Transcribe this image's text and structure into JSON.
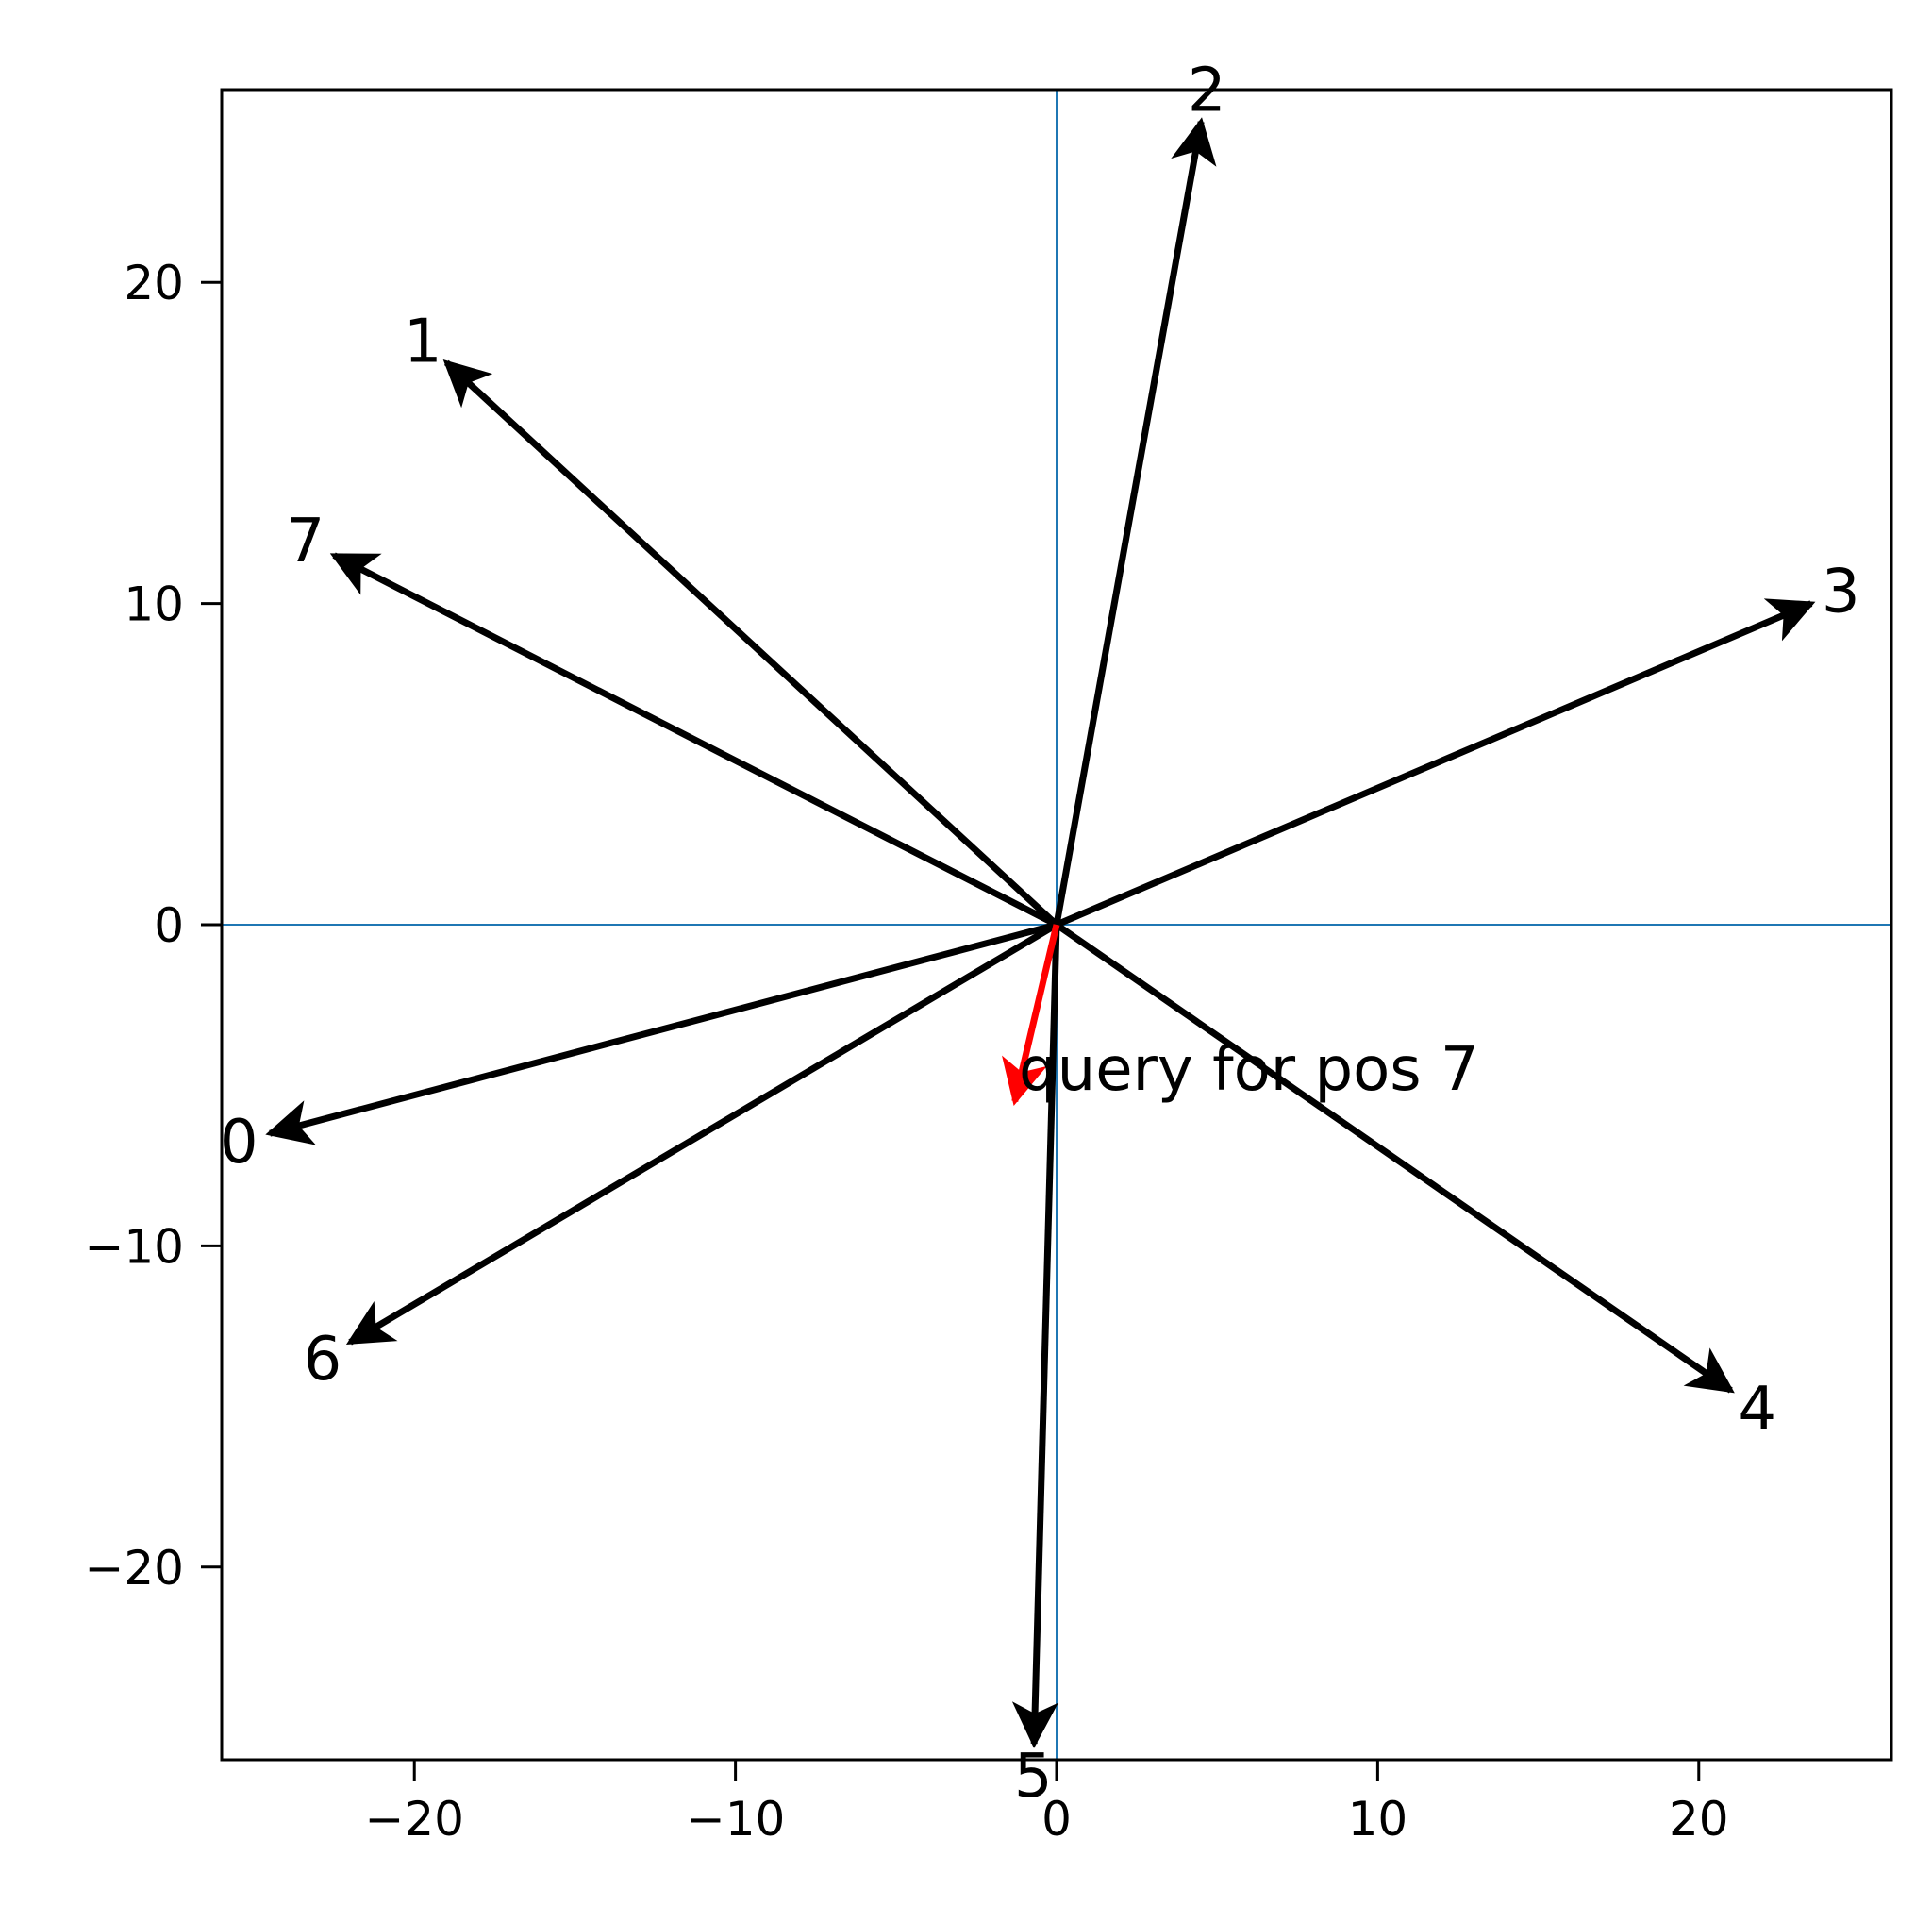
{
  "chart_data": {
    "type": "vector",
    "title": "",
    "xlabel": "",
    "ylabel": "",
    "xlim": [
      -26,
      26
    ],
    "ylim": [
      -26,
      26
    ],
    "xticks": [
      -20,
      -10,
      0,
      10,
      20
    ],
    "yticks": [
      -20,
      -10,
      0,
      10,
      20
    ],
    "xtick_labels": [
      "−20",
      "−10",
      "0",
      "10",
      "20"
    ],
    "ytick_labels": [
      "−20",
      "−10",
      "0",
      "10",
      "20"
    ],
    "grid": false,
    "reference_lines": {
      "x": 0,
      "y": 0,
      "color": "#1f77b4"
    },
    "vector_color": "#000000",
    "query_color": "#ff0000",
    "vectors": [
      {
        "label": "0",
        "x": -24.5,
        "y": -6.5
      },
      {
        "label": "1",
        "x": -19.0,
        "y": 17.5
      },
      {
        "label": "2",
        "x": 4.5,
        "y": 25.0
      },
      {
        "label": "3",
        "x": 23.5,
        "y": 10.0
      },
      {
        "label": "4",
        "x": 21.0,
        "y": -14.5
      },
      {
        "label": "5",
        "x": -0.7,
        "y": -25.5
      },
      {
        "label": "6",
        "x": -22.0,
        "y": -13.0
      },
      {
        "label": "7",
        "x": -22.5,
        "y": 11.5
      }
    ],
    "query": {
      "label": "query for pos 7",
      "x": -1.3,
      "y": -5.5
    }
  }
}
